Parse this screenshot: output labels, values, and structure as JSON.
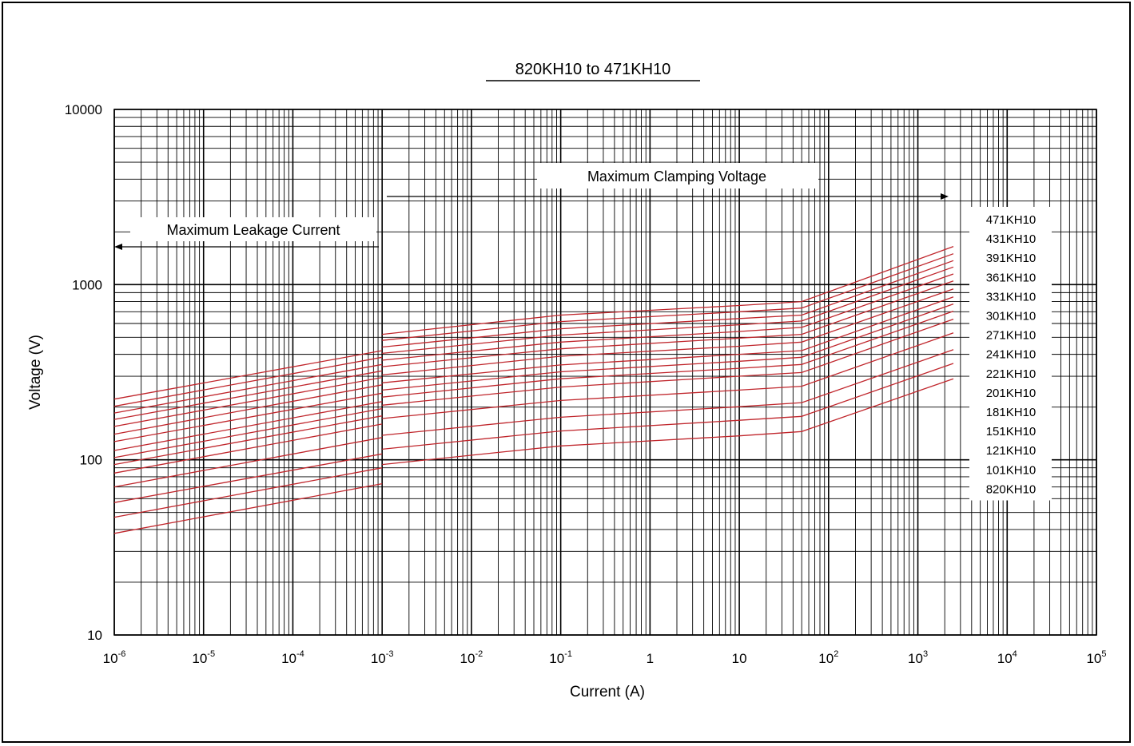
{
  "chart_data": {
    "type": "line",
    "title": "820KH10 to 471KH10",
    "xlabel": "Current (A)",
    "ylabel": "Voltage (V)",
    "x_scale": "log",
    "y_scale": "log",
    "xlim": [
      1e-06,
      100000
    ],
    "ylim": [
      10,
      10000
    ],
    "grid": true,
    "x_ticks": [
      {
        "base": "10",
        "exp": "-6"
      },
      {
        "base": "10",
        "exp": "-5"
      },
      {
        "base": "10",
        "exp": "-4"
      },
      {
        "base": "10",
        "exp": "-3"
      },
      {
        "base": "10",
        "exp": "-2"
      },
      {
        "base": "10",
        "exp": "-1"
      },
      {
        "base": "1",
        "exp": ""
      },
      {
        "base": "10",
        "exp": ""
      },
      {
        "base": "10",
        "exp": "2"
      },
      {
        "base": "10",
        "exp": "3"
      },
      {
        "base": "10",
        "exp": "4"
      },
      {
        "base": "10",
        "exp": "5"
      }
    ],
    "y_ticks": [
      "10",
      "100",
      "1000",
      "10000"
    ],
    "annotations": {
      "leakage": "Maximum Leakage Current",
      "clamping": "Maximum Clamping Voltage"
    },
    "legend_position": "right",
    "series_color": "#c0262c",
    "series": [
      {
        "name": "471KH10",
        "leak": [
          [
            1e-06,
            222
          ],
          [
            0.001,
            420
          ]
        ],
        "clamp": [
          [
            0.001,
            520
          ],
          [
            0.1,
            670
          ],
          [
            10,
            760
          ],
          [
            50,
            800
          ],
          [
            2500,
            1650
          ]
        ]
      },
      {
        "name": "431KH10",
        "leak": [
          [
            1e-06,
            202
          ],
          [
            0.001,
            385
          ]
        ],
        "clamp": [
          [
            0.001,
            480
          ],
          [
            0.1,
            615
          ],
          [
            10,
            700
          ],
          [
            50,
            735
          ],
          [
            2500,
            1500
          ]
        ]
      },
      {
        "name": "391KH10",
        "leak": [
          [
            1e-06,
            185
          ],
          [
            0.001,
            350
          ]
        ],
        "clamp": [
          [
            0.001,
            440
          ],
          [
            0.1,
            560
          ],
          [
            10,
            640
          ],
          [
            50,
            670
          ],
          [
            2500,
            1370
          ]
        ]
      },
      {
        "name": "361KH10",
        "leak": [
          [
            1e-06,
            170
          ],
          [
            0.001,
            322
          ]
        ],
        "clamp": [
          [
            0.001,
            405
          ],
          [
            0.1,
            515
          ],
          [
            10,
            590
          ],
          [
            50,
            620
          ],
          [
            2500,
            1260
          ]
        ]
      },
      {
        "name": "331KH10",
        "leak": [
          [
            1e-06,
            155
          ],
          [
            0.001,
            295
          ]
        ],
        "clamp": [
          [
            0.001,
            370
          ],
          [
            0.1,
            470
          ],
          [
            10,
            540
          ],
          [
            50,
            570
          ],
          [
            2500,
            1150
          ]
        ]
      },
      {
        "name": "301KH10",
        "leak": [
          [
            1e-06,
            140
          ],
          [
            0.001,
            268
          ]
        ],
        "clamp": [
          [
            0.001,
            340
          ],
          [
            0.1,
            430
          ],
          [
            10,
            495
          ],
          [
            50,
            520
          ],
          [
            2500,
            1050
          ]
        ]
      },
      {
        "name": "271KH10",
        "leak": [
          [
            1e-06,
            127
          ],
          [
            0.001,
            240
          ]
        ],
        "clamp": [
          [
            0.001,
            305
          ],
          [
            0.1,
            390
          ],
          [
            10,
            445
          ],
          [
            50,
            470
          ],
          [
            2500,
            945
          ]
        ]
      },
      {
        "name": "241KH10",
        "leak": [
          [
            1e-06,
            113
          ],
          [
            0.001,
            215
          ]
        ],
        "clamp": [
          [
            0.001,
            275
          ],
          [
            0.1,
            348
          ],
          [
            10,
            400
          ],
          [
            50,
            420
          ],
          [
            2500,
            850
          ]
        ]
      },
      {
        "name": "221KH10",
        "leak": [
          [
            1e-06,
            103
          ],
          [
            0.001,
            196
          ]
        ],
        "clamp": [
          [
            0.001,
            250
          ],
          [
            0.1,
            318
          ],
          [
            10,
            365
          ],
          [
            50,
            385
          ],
          [
            2500,
            775
          ]
        ]
      },
      {
        "name": "201KH10",
        "leak": [
          [
            1e-06,
            94
          ],
          [
            0.001,
            178
          ]
        ],
        "clamp": [
          [
            0.001,
            228
          ],
          [
            0.1,
            290
          ],
          [
            10,
            333
          ],
          [
            50,
            350
          ],
          [
            2500,
            705
          ]
        ]
      },
      {
        "name": "181KH10",
        "leak": [
          [
            1e-06,
            84
          ],
          [
            0.001,
            160
          ]
        ],
        "clamp": [
          [
            0.001,
            205
          ],
          [
            0.1,
            260
          ],
          [
            10,
            300
          ],
          [
            50,
            315
          ],
          [
            2500,
            635
          ]
        ]
      },
      {
        "name": "151KH10",
        "leak": [
          [
            1e-06,
            70
          ],
          [
            0.001,
            134
          ]
        ],
        "clamp": [
          [
            0.001,
            172
          ],
          [
            0.1,
            218
          ],
          [
            10,
            250
          ],
          [
            50,
            263
          ],
          [
            2500,
            530
          ]
        ]
      },
      {
        "name": "121KH10",
        "leak": [
          [
            1e-06,
            57
          ],
          [
            0.001,
            108
          ]
        ],
        "clamp": [
          [
            0.001,
            138
          ],
          [
            0.1,
            175
          ],
          [
            10,
            201
          ],
          [
            50,
            212
          ],
          [
            2500,
            425
          ]
        ]
      },
      {
        "name": "101KH10",
        "leak": [
          [
            1e-06,
            47
          ],
          [
            0.001,
            90
          ]
        ],
        "clamp": [
          [
            0.001,
            115
          ],
          [
            0.1,
            146
          ],
          [
            10,
            168
          ],
          [
            50,
            177
          ],
          [
            2500,
            355
          ]
        ]
      },
      {
        "name": "820KH10",
        "leak": [
          [
            1e-06,
            38
          ],
          [
            0.001,
            73
          ]
        ],
        "clamp": [
          [
            0.001,
            94
          ],
          [
            0.1,
            120
          ],
          [
            10,
            137
          ],
          [
            50,
            145
          ],
          [
            2500,
            290
          ]
        ]
      }
    ]
  }
}
